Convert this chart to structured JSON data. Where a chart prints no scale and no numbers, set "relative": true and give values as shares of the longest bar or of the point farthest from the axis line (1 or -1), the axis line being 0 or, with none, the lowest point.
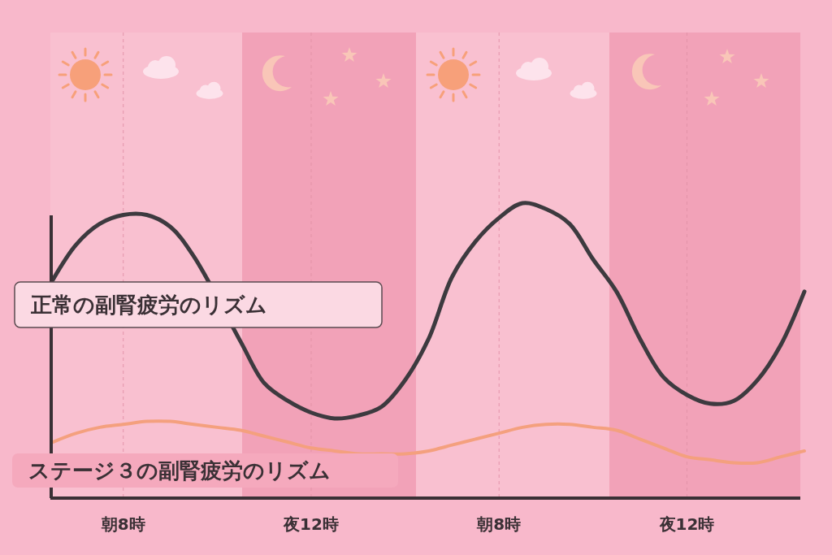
{
  "chart_data": {
    "type": "line",
    "relative": true,
    "categories": [
      null,
      null,
      null,
      "朝8時",
      null,
      null,
      null,
      null,
      null,
      null,
      null,
      "夜12時",
      null,
      null,
      null,
      null,
      null,
      null,
      null,
      "朝8時",
      null,
      null,
      null,
      null,
      null,
      null,
      null,
      "夜12時",
      null,
      null,
      null,
      null,
      null
    ],
    "grid": "x",
    "legend": false,
    "series": [
      {
        "name": "正常の副腎疲労のリズム",
        "color": "#3d3a3f",
        "values": [
          0.74,
          0.86,
          0.93,
          0.96,
          0.96,
          0.92,
          0.82,
          null,
          0.53,
          0.39,
          0.33,
          0.29,
          0.27,
          0.28,
          0.31,
          0.4,
          0.54,
          0.75,
          0.87,
          0.95,
          1.0,
          0.98,
          0.93,
          0.81,
          0.7,
          0.54,
          0.41,
          0.35,
          0.32,
          0.33,
          0.4,
          0.52,
          0.7
        ]
      },
      {
        "name": "ステージ３の副腎疲労のリズム",
        "color": "#f4a07e",
        "values": [
          0.19,
          0.22,
          0.24,
          0.25,
          0.26,
          0.26,
          0.25,
          0.24,
          0.23,
          0.21,
          0.19,
          0.17,
          0.16,
          0.15,
          0.15,
          0.15,
          0.16,
          0.18,
          0.2,
          0.22,
          0.24,
          0.25,
          0.25,
          0.24,
          0.23,
          0.2,
          0.17,
          0.14,
          0.13,
          0.12,
          0.12,
          0.14,
          0.16
        ]
      }
    ]
  }
}
